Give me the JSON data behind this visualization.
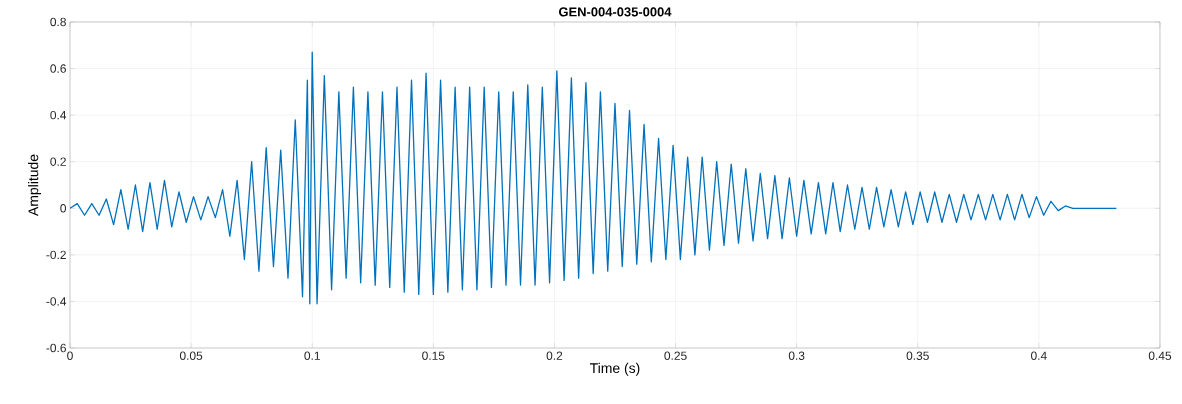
{
  "chart_data": {
    "type": "line",
    "title": "GEN-004-035-0004",
    "xlabel": "Time (s)",
    "ylabel": "Amplitude",
    "xlim": [
      0,
      0.45
    ],
    "ylim": [
      -0.6,
      0.8
    ],
    "xticks": [
      0,
      0.05,
      0.1,
      0.15,
      0.2,
      0.25,
      0.3,
      0.35,
      0.4,
      0.45
    ],
    "yticks": [
      -0.6,
      -0.4,
      -0.2,
      0,
      0.2,
      0.4,
      0.6,
      0.8
    ],
    "grid": true,
    "color": "#0072bd",
    "x": [
      0,
      0.003,
      0.006,
      0.009,
      0.012,
      0.015,
      0.018,
      0.021,
      0.024,
      0.027,
      0.03,
      0.033,
      0.036,
      0.039,
      0.042,
      0.045,
      0.048,
      0.051,
      0.054,
      0.057,
      0.06,
      0.063,
      0.066,
      0.069,
      0.072,
      0.075,
      0.078,
      0.081,
      0.084,
      0.087,
      0.09,
      0.093,
      0.096,
      0.098,
      0.099,
      0.1,
      0.102,
      0.105,
      0.108,
      0.111,
      0.114,
      0.117,
      0.12,
      0.123,
      0.126,
      0.129,
      0.132,
      0.135,
      0.138,
      0.141,
      0.144,
      0.147,
      0.15,
      0.153,
      0.156,
      0.159,
      0.162,
      0.165,
      0.168,
      0.171,
      0.174,
      0.177,
      0.18,
      0.183,
      0.186,
      0.189,
      0.192,
      0.195,
      0.198,
      0.201,
      0.204,
      0.207,
      0.21,
      0.213,
      0.216,
      0.219,
      0.222,
      0.225,
      0.228,
      0.231,
      0.234,
      0.237,
      0.24,
      0.243,
      0.246,
      0.249,
      0.252,
      0.255,
      0.258,
      0.261,
      0.264,
      0.267,
      0.27,
      0.273,
      0.276,
      0.279,
      0.282,
      0.285,
      0.288,
      0.291,
      0.294,
      0.297,
      0.3,
      0.303,
      0.306,
      0.309,
      0.312,
      0.315,
      0.318,
      0.321,
      0.324,
      0.327,
      0.33,
      0.333,
      0.336,
      0.339,
      0.342,
      0.345,
      0.348,
      0.351,
      0.354,
      0.357,
      0.36,
      0.363,
      0.366,
      0.369,
      0.372,
      0.375,
      0.378,
      0.381,
      0.384,
      0.387,
      0.39,
      0.393,
      0.396,
      0.399,
      0.402,
      0.405,
      0.408,
      0.411,
      0.414,
      0.432
    ],
    "values": [
      0,
      0.02,
      -0.03,
      0.02,
      -0.03,
      0.04,
      -0.07,
      0.08,
      -0.09,
      0.1,
      -0.1,
      0.11,
      -0.09,
      0.12,
      -0.08,
      0.07,
      -0.06,
      0.05,
      -0.05,
      0.05,
      -0.04,
      0.08,
      -0.12,
      0.12,
      -0.22,
      0.2,
      -0.27,
      0.26,
      -0.25,
      0.25,
      -0.3,
      0.38,
      -0.38,
      0.55,
      -0.41,
      0.67,
      -0.41,
      0.57,
      -0.35,
      0.5,
      -0.3,
      0.52,
      -0.32,
      0.5,
      -0.33,
      0.5,
      -0.34,
      0.52,
      -0.36,
      0.55,
      -0.37,
      0.58,
      -0.37,
      0.55,
      -0.36,
      0.52,
      -0.35,
      0.52,
      -0.35,
      0.52,
      -0.34,
      0.5,
      -0.33,
      0.5,
      -0.33,
      0.53,
      -0.33,
      0.52,
      -0.32,
      0.59,
      -0.31,
      0.56,
      -0.3,
      0.54,
      -0.28,
      0.5,
      -0.27,
      0.45,
      -0.25,
      0.42,
      -0.24,
      0.36,
      -0.23,
      0.3,
      -0.22,
      0.27,
      -0.22,
      0.22,
      -0.2,
      0.22,
      -0.18,
      0.2,
      -0.16,
      0.19,
      -0.15,
      0.17,
      -0.14,
      0.15,
      -0.13,
      0.14,
      -0.13,
      0.13,
      -0.12,
      0.12,
      -0.11,
      0.11,
      -0.11,
      0.11,
      -0.1,
      0.1,
      -0.09,
      0.09,
      -0.09,
      0.09,
      -0.08,
      0.08,
      -0.08,
      0.07,
      -0.07,
      0.07,
      -0.06,
      0.07,
      -0.06,
      0.06,
      -0.06,
      0.06,
      -0.05,
      0.06,
      -0.05,
      0.06,
      -0.05,
      0.06,
      -0.05,
      0.06,
      -0.04,
      0.05,
      -0.03,
      0.03,
      -0.01,
      0.01,
      0,
      0
    ]
  }
}
